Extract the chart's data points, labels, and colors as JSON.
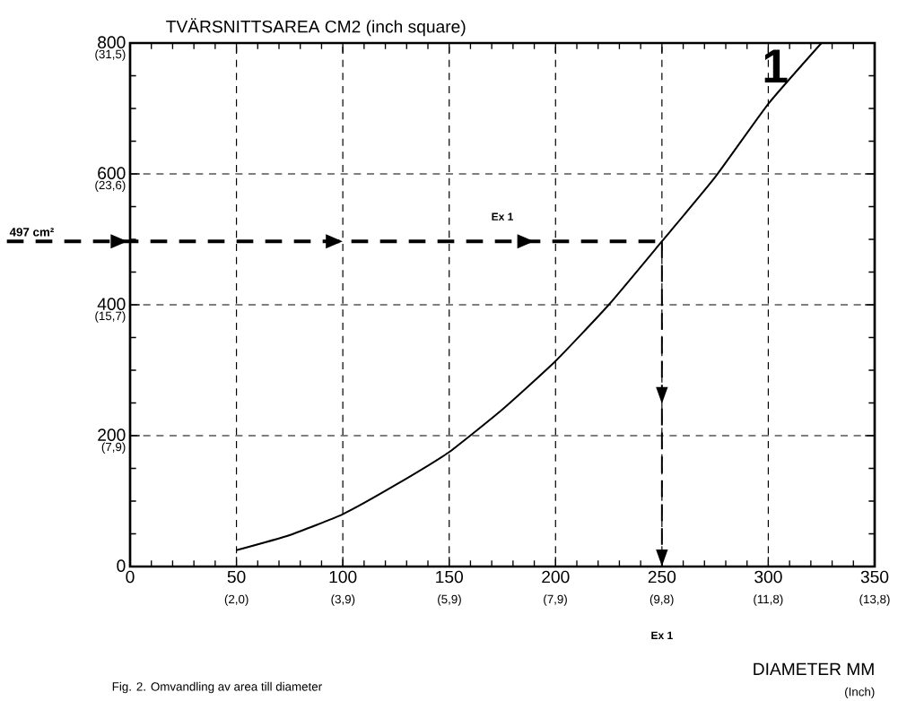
{
  "chart_data": {
    "type": "line",
    "ylabel": "TVÄRSNITTSAREA CM2 (inch square)",
    "xlabel": "DIAMETER MM",
    "x2label": "(Inch)",
    "x": [
      50,
      75,
      100,
      125,
      150,
      175,
      200,
      225,
      250,
      275,
      300,
      325
    ],
    "series": [
      {
        "name": "1",
        "color": "#000000",
        "values": [
          25,
          48,
          80,
          125,
          175,
          240,
          314,
          400,
          497,
          595,
          707,
          800
        ]
      }
    ],
    "xlim": [
      0,
      350
    ],
    "ylim": [
      0,
      800
    ],
    "xticks": [
      0,
      50,
      100,
      150,
      200,
      250,
      300,
      350
    ],
    "yticks": [
      0,
      200,
      400,
      600,
      800
    ],
    "x2lim": [
      0,
      13.78
    ],
    "x2ticks": [
      {
        "value": 1.97,
        "label": "(2,0)"
      },
      {
        "value": 3.94,
        "label": "(3,9)"
      },
      {
        "value": 5.91,
        "label": "(5,9)"
      },
      {
        "value": 7.87,
        "label": "(7,9)"
      },
      {
        "value": 9.84,
        "label": "(9,8)"
      },
      {
        "value": 11.81,
        "label": "(11,8)"
      },
      {
        "value": 13.78,
        "label": "(13,8)"
      }
    ],
    "y2lim": [
      0,
      31.5
    ],
    "y2ticks": [
      {
        "value": 7.87,
        "label": "(7,9)"
      },
      {
        "value": 15.75,
        "label": "(15,7)"
      },
      {
        "value": 23.62,
        "label": "(23,6)"
      },
      {
        "value": 31.5,
        "label": "(31,5)"
      }
    ],
    "grid": true,
    "ref_lines": [
      {
        "axis": "y",
        "value": 497,
        "label": "497 cm²",
        "line_style": "dashed",
        "color": "#000000"
      },
      {
        "axis": "x",
        "value": 250,
        "line_style": "dashed",
        "color": "#000000"
      }
    ],
    "annotations": [
      {
        "text": "Ex 1",
        "x": 175,
        "y": 497
      },
      "Ex 1",
      "Fig. 2. Omvandling av area till diameter"
    ]
  }
}
